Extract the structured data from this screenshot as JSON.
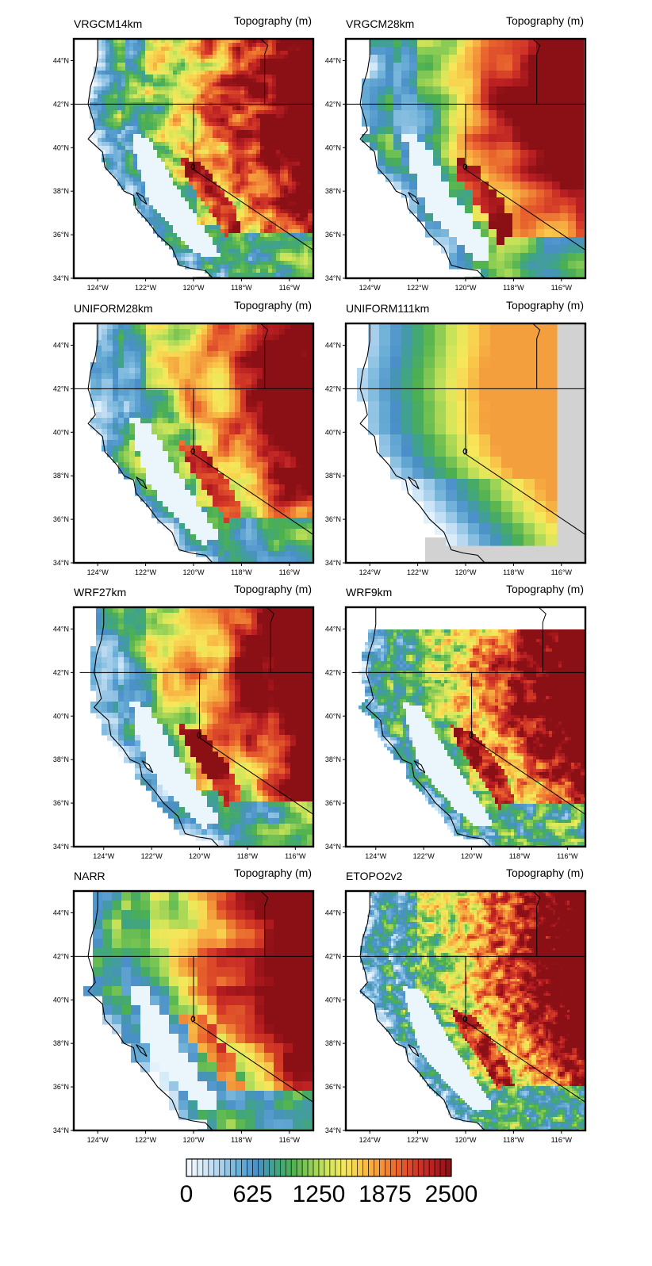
{
  "figure": {
    "variable_label": "Topography (m)",
    "panels": [
      {
        "id": "vrgcm14",
        "title": "VRGCM14km"
      },
      {
        "id": "vrgcm28",
        "title": "VRGCM28km"
      },
      {
        "id": "uniform28",
        "title": "UNIFORM28km"
      },
      {
        "id": "uniform111",
        "title": "UNIFORM111km"
      },
      {
        "id": "wrf27",
        "title": "WRF27km"
      },
      {
        "id": "wrf9",
        "title": "WRF9km"
      },
      {
        "id": "narr",
        "title": "NARR"
      },
      {
        "id": "etopo",
        "title": "ETOPO2v2"
      }
    ],
    "lat_ticks": [
      "34°N",
      "36°N",
      "38°N",
      "40°N",
      "42°N",
      "44°N"
    ],
    "lon_ticks": [
      "124°W",
      "122°W",
      "120°W",
      "118°W",
      "116°W"
    ],
    "colorbar": {
      "labels": [
        "0",
        "625",
        "1250",
        "1875",
        "2500"
      ],
      "colors": [
        "#f7fbff",
        "#d6eaf8",
        "#a9d0ec",
        "#6aaed6",
        "#4a8fc9",
        "#3fa38a",
        "#4cb050",
        "#8ccd55",
        "#d2e65a",
        "#f7e75a",
        "#f8c248",
        "#f3963a",
        "#e8632d",
        "#d33a27",
        "#b81e22",
        "#8b1015"
      ]
    }
  },
  "chart_data": [
    {
      "type": "heatmap",
      "title": "VRGCM14km",
      "subtitle": "Topography (m)",
      "x_ticks": [
        "124°W",
        "122°W",
        "120°W",
        "118°W",
        "116°W"
      ],
      "y_ticks": [
        "34°N",
        "36°N",
        "38°N",
        "40°N",
        "42°N",
        "44°N"
      ],
      "xlim": [
        -125,
        -115
      ],
      "ylim": [
        34,
        45
      ],
      "zlim": [
        0,
        2500
      ]
    },
    {
      "type": "heatmap",
      "title": "VRGCM28km",
      "subtitle": "Topography (m)",
      "x_ticks": [
        "124°W",
        "122°W",
        "120°W",
        "118°W",
        "116°W"
      ],
      "y_ticks": [
        "34°N",
        "36°N",
        "38°N",
        "40°N",
        "42°N",
        "44°N"
      ],
      "xlim": [
        -125,
        -115
      ],
      "ylim": [
        34,
        45
      ],
      "zlim": [
        0,
        2500
      ]
    },
    {
      "type": "heatmap",
      "title": "UNIFORM28km",
      "subtitle": "Topography (m)",
      "x_ticks": [
        "124°W",
        "122°W",
        "120°W",
        "118°W",
        "116°W"
      ],
      "y_ticks": [
        "34°N",
        "36°N",
        "38°N",
        "40°N",
        "42°N",
        "44°N"
      ],
      "xlim": [
        -125,
        -115
      ],
      "ylim": [
        34,
        45
      ],
      "zlim": [
        0,
        2500
      ]
    },
    {
      "type": "heatmap",
      "title": "UNIFORM111km",
      "subtitle": "Topography (m)",
      "x_ticks": [
        "124°W",
        "122°W",
        "120°W",
        "118°W",
        "116°W"
      ],
      "y_ticks": [
        "34°N",
        "36°N",
        "38°N",
        "40°N",
        "42°N",
        "44°N"
      ],
      "xlim": [
        -125,
        -115
      ],
      "ylim": [
        34,
        45
      ],
      "zlim": [
        0,
        2500
      ]
    },
    {
      "type": "heatmap",
      "title": "WRF27km",
      "subtitle": "Topography (m)",
      "x_ticks": [
        "124°W",
        "122°W",
        "120°W",
        "118°W",
        "116°W"
      ],
      "y_ticks": [
        "34°N",
        "36°N",
        "38°N",
        "40°N",
        "42°N",
        "44°N"
      ],
      "xlim": [
        -125,
        -115
      ],
      "ylim": [
        34,
        45
      ],
      "zlim": [
        0,
        2500
      ]
    },
    {
      "type": "heatmap",
      "title": "WRF9km",
      "subtitle": "Topography (m)",
      "x_ticks": [
        "124°W",
        "122°W",
        "120°W",
        "118°W",
        "116°W"
      ],
      "y_ticks": [
        "34°N",
        "36°N",
        "38°N",
        "40°N",
        "42°N",
        "44°N"
      ],
      "xlim": [
        -125,
        -115
      ],
      "ylim": [
        34,
        45
      ],
      "zlim": [
        0,
        2500
      ]
    },
    {
      "type": "heatmap",
      "title": "NARR",
      "subtitle": "Topography (m)",
      "x_ticks": [
        "124°W",
        "122°W",
        "120°W",
        "118°W",
        "116°W"
      ],
      "y_ticks": [
        "34°N",
        "36°N",
        "38°N",
        "40°N",
        "42°N",
        "44°N"
      ],
      "xlim": [
        -125,
        -115
      ],
      "ylim": [
        34,
        45
      ],
      "zlim": [
        0,
        2500
      ]
    },
    {
      "type": "heatmap",
      "title": "ETOPO2v2",
      "subtitle": "Topography (m)",
      "x_ticks": [
        "124°W",
        "122°W",
        "120°W",
        "118°W",
        "116°W"
      ],
      "y_ticks": [
        "34°N",
        "36°N",
        "38°N",
        "40°N",
        "42°N",
        "44°N"
      ],
      "xlim": [
        -125,
        -115
      ],
      "ylim": [
        34,
        45
      ],
      "zlim": [
        0,
        2500
      ]
    }
  ]
}
